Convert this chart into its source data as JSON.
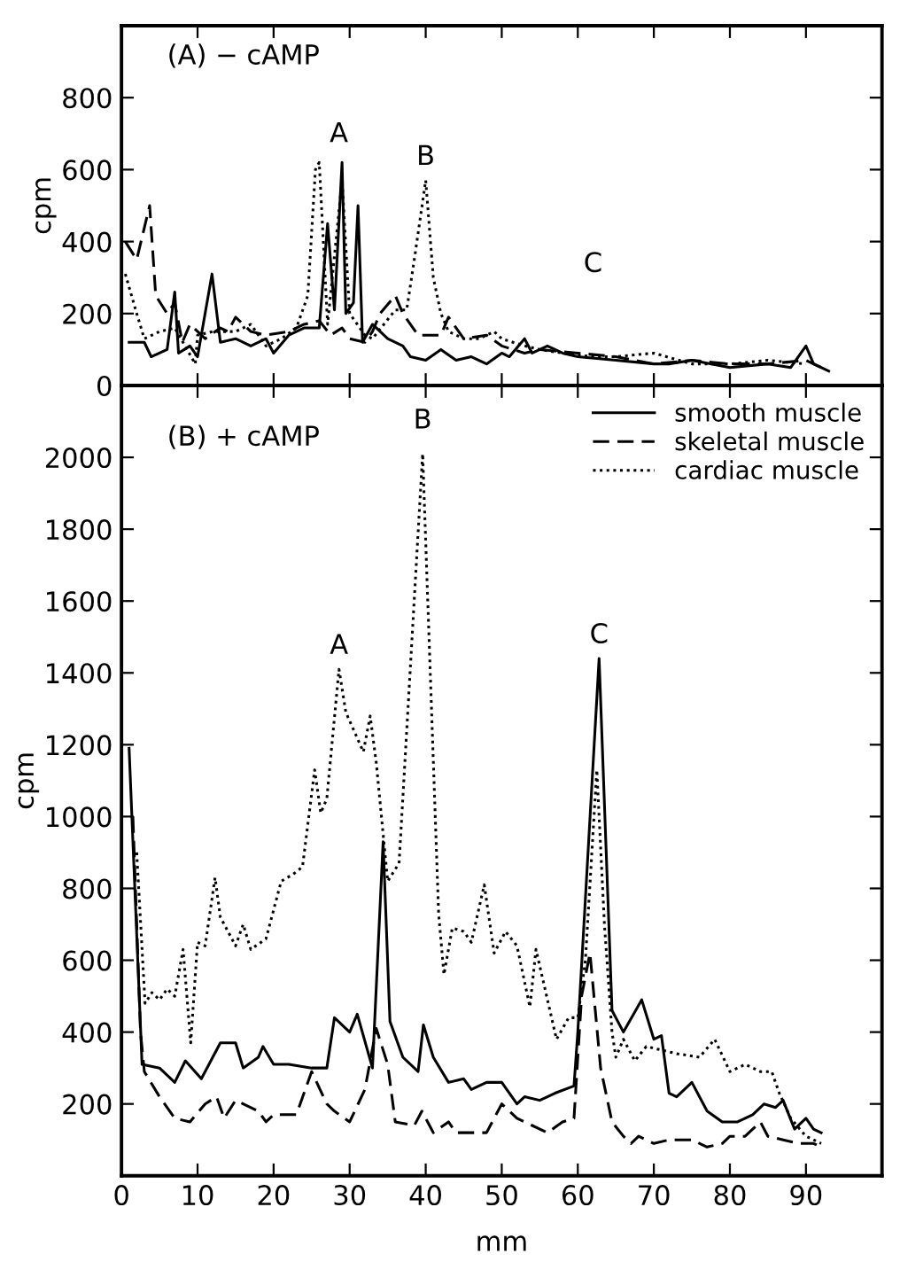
{
  "chart_data": [
    {
      "type": "line",
      "title": "(A) − cAMP",
      "ylabel": "cpm",
      "xlim": [
        0,
        100
      ],
      "ylim": [
        0,
        1000
      ],
      "xticks": [
        10,
        20,
        30,
        40,
        50,
        60,
        70,
        80,
        90
      ],
      "yticks": [
        0,
        200,
        400,
        600,
        800
      ],
      "tick_labels": "y",
      "annotations": [
        {
          "text": "A",
          "x": 26,
          "y": 620
        },
        {
          "text": "B",
          "x": 40,
          "y": 570
        },
        "C"
      ],
      "series": [
        {
          "color": "#000000",
          "line_style": "solid",
          "x": [
            1,
            3,
            3.9,
            6,
            7,
            7.5,
            9,
            10,
            11.9,
            13,
            15,
            17,
            19,
            20,
            22,
            24,
            26,
            27.1,
            28,
            29,
            29.5,
            30.5,
            31.1,
            31.7,
            33,
            35,
            37,
            38,
            40,
            42,
            44,
            46,
            48,
            50,
            51,
            53,
            54,
            56,
            58,
            60,
            65,
            70,
            72,
            75,
            80,
            85,
            88,
            90,
            91,
            93
          ],
          "values": [
            120,
            120,
            80,
            100,
            260,
            90,
            110,
            80,
            310,
            120,
            130,
            110,
            130,
            90,
            140,
            160,
            160,
            450,
            210,
            620,
            200,
            230,
            500,
            120,
            170,
            130,
            110,
            80,
            70,
            100,
            70,
            80,
            60,
            90,
            80,
            130,
            90,
            110,
            90,
            80,
            70,
            60,
            60,
            70,
            50,
            60,
            50,
            110,
            60,
            40
          ]
        },
        {
          "color": "#000000",
          "line_style": "dashed",
          "x": [
            0.5,
            2,
            3.7,
            4.5,
            6,
            7,
            8,
            9,
            11,
            13,
            14,
            15,
            17,
            19,
            22,
            24,
            26,
            27.5,
            29,
            30,
            32,
            33,
            34,
            36,
            37,
            39,
            42,
            43,
            45,
            48,
            50,
            53,
            55,
            60,
            65,
            70,
            75,
            80,
            85,
            90,
            92
          ],
          "values": [
            400,
            350,
            500,
            250,
            200,
            230,
            120,
            170,
            130,
            160,
            150,
            190,
            150,
            140,
            150,
            170,
            180,
            140,
            160,
            130,
            120,
            150,
            200,
            250,
            200,
            140,
            140,
            190,
            130,
            140,
            110,
            90,
            100,
            90,
            80,
            60,
            70,
            60,
            60,
            70,
            50
          ]
        },
        {
          "color": "#000000",
          "line_style": "dotted",
          "x": [
            0.5,
            2,
            3,
            5,
            7,
            9.7,
            10,
            12,
            15,
            17,
            19,
            21,
            23,
            24.5,
            25.5,
            26,
            27.1,
            29,
            30,
            31,
            32,
            33,
            34.5,
            36,
            37.5,
            38.5,
            40,
            41,
            42,
            43,
            45,
            47,
            49,
            50,
            53,
            55,
            58,
            62,
            65,
            70,
            75,
            80,
            85,
            90
          ],
          "values": [
            310,
            200,
            130,
            150,
            160,
            60,
            140,
            150,
            150,
            170,
            110,
            130,
            160,
            250,
            600,
            620,
            170,
            570,
            200,
            170,
            140,
            130,
            170,
            210,
            210,
            350,
            570,
            300,
            200,
            150,
            130,
            130,
            150,
            130,
            110,
            100,
            90,
            80,
            80,
            90,
            60,
            60,
            70,
            60
          ]
        }
      ]
    },
    {
      "type": "line",
      "title": "(B) + cAMP",
      "xlabel": "mm",
      "ylabel": "cpm",
      "xlim": [
        0,
        100
      ],
      "ylim": [
        0,
        2200
      ],
      "xticks": [
        0,
        10,
        20,
        30,
        40,
        50,
        60,
        70,
        80,
        90
      ],
      "yticks": [
        200,
        400,
        600,
        800,
        1000,
        1200,
        1400,
        1600,
        1800,
        2000
      ],
      "legend": "top right",
      "annotations": [
        {
          "text": "A",
          "x": 28.6,
          "y": 1410
        },
        {
          "text": "B",
          "x": 39.6,
          "y": 2010
        },
        {
          "text": "C",
          "x": 62.8,
          "y": 1440
        }
      ],
      "series": [
        {
          "name": "smooth muscle",
          "color": "#000000",
          "line_style": "solid",
          "x": [
            1,
            2.7,
            5,
            7,
            8.4,
            10.5,
            13,
            15,
            16,
            18,
            18.6,
            20,
            22,
            25,
            27,
            28,
            30,
            31,
            33,
            34.4,
            35.3,
            37,
            39,
            39.7,
            41,
            43,
            45,
            46,
            48,
            50,
            52,
            53,
            55,
            57,
            59.5,
            60,
            62.8,
            64.5,
            66,
            68.4,
            70,
            71,
            72,
            73,
            75,
            77,
            79,
            81,
            83,
            84.5,
            86,
            87,
            88.5,
            90,
            91,
            92
          ],
          "values": [
            1190,
            310,
            300,
            260,
            320,
            270,
            370,
            370,
            300,
            330,
            360,
            310,
            310,
            300,
            300,
            440,
            400,
            450,
            300,
            930,
            430,
            330,
            290,
            420,
            330,
            260,
            270,
            240,
            260,
            260,
            200,
            220,
            210,
            230,
            250,
            400,
            1440,
            460,
            400,
            490,
            380,
            390,
            230,
            220,
            260,
            180,
            150,
            150,
            170,
            200,
            190,
            210,
            130,
            160,
            130,
            120
          ]
        },
        {
          "name": "skeletal muscle",
          "color": "#000000",
          "line_style": "dashed",
          "x": [
            1.5,
            2.5,
            3,
            5,
            7,
            9,
            11,
            12.5,
            13.5,
            15,
            18,
            19,
            20,
            23,
            25,
            27,
            28,
            30,
            32,
            33.5,
            35,
            36,
            38.5,
            39.5,
            41,
            43,
            44,
            48,
            50,
            52,
            54,
            56,
            58,
            59.5,
            60.5,
            61.6,
            63,
            64.5,
            66,
            67,
            68,
            70,
            72,
            75,
            77,
            79,
            80,
            82,
            84,
            85,
            87,
            89,
            91,
            92
          ],
          "values": [
            1000,
            400,
            290,
            220,
            160,
            150,
            200,
            220,
            160,
            210,
            180,
            150,
            170,
            170,
            290,
            200,
            180,
            150,
            240,
            410,
            310,
            150,
            140,
            180,
            120,
            150,
            120,
            120,
            200,
            160,
            140,
            120,
            150,
            160,
            500,
            620,
            300,
            150,
            110,
            90,
            110,
            90,
            100,
            100,
            80,
            90,
            110,
            110,
            150,
            110,
            100,
            90,
            90,
            80
          ]
        },
        {
          "name": "cardiac muscle",
          "color": "#000000",
          "line_style": "dotted",
          "x": [
            2,
            3.1,
            4,
            5,
            6,
            7,
            8.1,
            9.1,
            10,
            11,
            12.3,
            13,
            15,
            16,
            17,
            19,
            21,
            22.6,
            23.8,
            25.4,
            26.2,
            27,
            28.6,
            29.5,
            31.8,
            32.7,
            33.5,
            35,
            36.5,
            39.6,
            41.7,
            42.4,
            43.5,
            45,
            46,
            47.7,
            49,
            50.5,
            52,
            53.7,
            54.5,
            57.2,
            58.8,
            60,
            61,
            62.5,
            63.5,
            64.5,
            65,
            66,
            67.5,
            69,
            71,
            73,
            76,
            78,
            80,
            82,
            84,
            85.5,
            86.5,
            88,
            90,
            92
          ],
          "values": [
            900,
            480,
            510,
            490,
            520,
            500,
            630,
            370,
            650,
            640,
            830,
            720,
            640,
            700,
            630,
            660,
            820,
            840,
            860,
            1130,
            1010,
            1050,
            1410,
            1290,
            1180,
            1280,
            1150,
            820,
            870,
            2010,
            730,
            560,
            690,
            680,
            650,
            810,
            620,
            680,
            640,
            470,
            630,
            380,
            440,
            440,
            600,
            1130,
            700,
            400,
            330,
            380,
            320,
            360,
            350,
            340,
            330,
            380,
            290,
            310,
            290,
            290,
            230,
            160,
            110,
            90
          ]
        }
      ]
    }
  ]
}
